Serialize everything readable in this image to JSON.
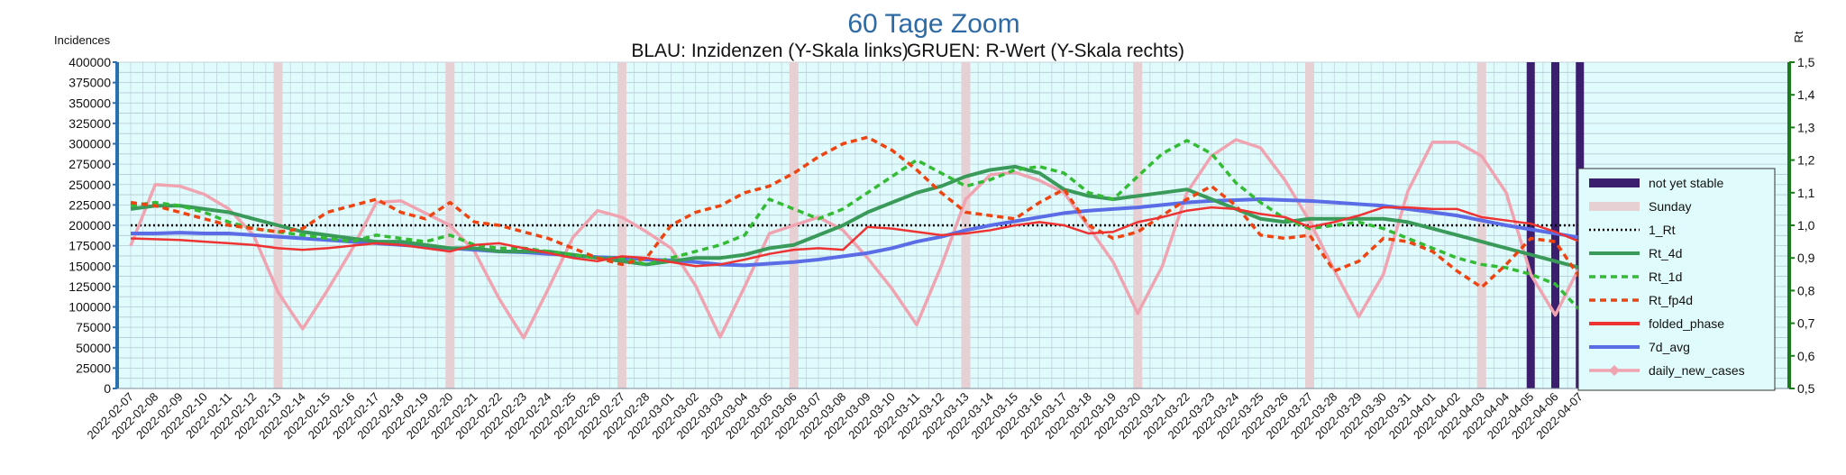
{
  "chart_data": {
    "type": "line",
    "title": "60 Tage Zoom",
    "subtitle_left": "BLAU: Inzidenzen (Y-Skala links)",
    "subtitle_right": "GRUEN: R-Wert (Y-Skala rechts)",
    "ylabel_left": "Incidences",
    "ylabel_right": "Rt",
    "ylim_left": [
      0,
      400000
    ],
    "ylim_right": [
      0.5,
      1.5
    ],
    "yticks_left": [
      "0",
      "25000",
      "50000",
      "75000",
      "100000",
      "125000",
      "150000",
      "175000",
      "200000",
      "225000",
      "250000",
      "275000",
      "300000",
      "325000",
      "350000",
      "375000",
      "400000"
    ],
    "yticks_right": [
      "0,5",
      "0,6",
      "0,7",
      "0,8",
      "0,9",
      "1,0",
      "1,1",
      "1,2",
      "1,3",
      "1,4",
      "1,5"
    ],
    "x": [
      "2022-02-07",
      "2022-02-08",
      "2022-02-09",
      "2022-02-10",
      "2022-02-11",
      "2022-02-12",
      "2022-02-13",
      "2022-02-14",
      "2022-02-15",
      "2022-02-16",
      "2022-02-17",
      "2022-02-18",
      "2022-02-19",
      "2022-02-20",
      "2022-02-21",
      "2022-02-22",
      "2022-02-23",
      "2022-02-24",
      "2022-02-25",
      "2022-02-26",
      "2022-02-27",
      "2022-02-28",
      "2022-03-01",
      "2022-03-02",
      "2022-03-03",
      "2022-03-04",
      "2022-03-05",
      "2022-03-06",
      "2022-03-07",
      "2022-03-08",
      "2022-03-09",
      "2022-03-10",
      "2022-03-11",
      "2022-03-12",
      "2022-03-13",
      "2022-03-14",
      "2022-03-15",
      "2022-03-16",
      "2022-03-17",
      "2022-03-18",
      "2022-03-19",
      "2022-03-20",
      "2022-03-21",
      "2022-03-22",
      "2022-03-23",
      "2022-03-24",
      "2022-03-25",
      "2022-03-26",
      "2022-03-27",
      "2022-03-28",
      "2022-03-29",
      "2022-03-30",
      "2022-03-31",
      "2022-04-01",
      "2022-04-02",
      "2022-04-03",
      "2022-04-04",
      "2022-04-05",
      "2022-04-06",
      "2022-04-07"
    ],
    "sundays": [
      "2022-02-13",
      "2022-02-20",
      "2022-02-27",
      "2022-03-06",
      "2022-03-13",
      "2022-03-20",
      "2022-03-27",
      "2022-04-03"
    ],
    "not_yet_stable": [
      "2022-04-05",
      "2022-04-06",
      "2022-04-07"
    ],
    "reference_line": 1.0,
    "series": [
      {
        "name": "daily_new_cases",
        "axis": "left",
        "color": "#f0a3b0",
        "values": [
          175000,
          250000,
          248000,
          238000,
          220000,
          188000,
          118000,
          73000,
          120000,
          170000,
          228000,
          230000,
          215000,
          200000,
          168000,
          110000,
          62000,
          122000,
          185000,
          218000,
          210000,
          192000,
          172000,
          126000,
          63000,
          125000,
          190000,
          200000,
          210000,
          194000,
          160000,
          122000,
          78000,
          150000,
          232000,
          262000,
          265000,
          255000,
          240000,
          198000,
          155000,
          92000,
          150000,
          240000,
          285000,
          305000,
          295000,
          255000,
          205000,
          145000,
          88000,
          140000,
          242000,
          302000,
          302000,
          285000,
          240000,
          140000,
          90000,
          150000
        ]
      },
      {
        "name": "7d_avg",
        "axis": "left",
        "color": "#5b6de6",
        "values": [
          190000,
          190000,
          191000,
          190000,
          190000,
          188000,
          186000,
          184000,
          182000,
          180000,
          178000,
          176000,
          174000,
          172000,
          170000,
          168000,
          167000,
          165000,
          163000,
          161000,
          160000,
          158000,
          157000,
          155000,
          152000,
          151000,
          153000,
          155000,
          158000,
          162000,
          166000,
          172000,
          180000,
          186000,
          194000,
          200000,
          205000,
          210000,
          215000,
          218000,
          220000,
          222000,
          225000,
          228000,
          230000,
          231000,
          232000,
          231000,
          230000,
          228000,
          226000,
          224000,
          220000,
          216000,
          212000,
          206000,
          200000,
          195000,
          190000,
          185000
        ]
      },
      {
        "name": "folded_phase",
        "axis": "left",
        "color": "#ee3333",
        "values": [
          184000,
          183000,
          182000,
          180000,
          178000,
          176000,
          172000,
          170000,
          172000,
          175000,
          178000,
          176000,
          172000,
          168000,
          176000,
          178000,
          172000,
          166000,
          160000,
          156000,
          162000,
          160000,
          155000,
          150000,
          152000,
          158000,
          165000,
          170000,
          172000,
          170000,
          198000,
          196000,
          192000,
          188000,
          190000,
          194000,
          200000,
          204000,
          200000,
          190000,
          192000,
          204000,
          210000,
          218000,
          222000,
          220000,
          214000,
          210000,
          198000,
          204000,
          212000,
          222000,
          222000,
          220000,
          220000,
          210000,
          206000,
          202000,
          192000,
          180000
        ]
      },
      {
        "name": "Rt_4d",
        "axis": "right",
        "color": "#3a9a5a",
        "values": [
          1.05,
          1.06,
          1.06,
          1.05,
          1.04,
          1.02,
          1.0,
          0.98,
          0.97,
          0.96,
          0.95,
          0.95,
          0.94,
          0.93,
          0.93,
          0.92,
          0.92,
          0.92,
          0.91,
          0.9,
          0.89,
          0.88,
          0.89,
          0.9,
          0.9,
          0.91,
          0.93,
          0.94,
          0.97,
          1.0,
          1.04,
          1.07,
          1.1,
          1.12,
          1.15,
          1.17,
          1.18,
          1.16,
          1.11,
          1.09,
          1.08,
          1.09,
          1.1,
          1.11,
          1.08,
          1.05,
          1.02,
          1.01,
          1.02,
          1.02,
          1.02,
          1.02,
          1.01,
          0.99,
          0.97,
          0.95,
          0.93,
          0.91,
          0.89,
          0.87
        ]
      },
      {
        "name": "Rt_1d",
        "axis": "right",
        "color": "#33bb33",
        "values": [
          1.06,
          1.07,
          1.06,
          1.04,
          1.01,
          0.99,
          0.98,
          0.97,
          0.96,
          0.95,
          0.97,
          0.96,
          0.95,
          0.97,
          0.94,
          0.93,
          0.93,
          0.92,
          0.91,
          0.9,
          0.9,
          0.88,
          0.9,
          0.92,
          0.94,
          0.97,
          1.08,
          1.05,
          1.02,
          1.05,
          1.1,
          1.15,
          1.2,
          1.16,
          1.12,
          1.14,
          1.17,
          1.18,
          1.16,
          1.1,
          1.08,
          1.15,
          1.22,
          1.26,
          1.22,
          1.13,
          1.07,
          1.02,
          0.99,
          1.0,
          1.01,
          0.99,
          0.96,
          0.93,
          0.9,
          0.88,
          0.87,
          0.85,
          0.82,
          0.74
        ]
      },
      {
        "name": "Rt_fp4d",
        "axis": "right",
        "color": "#ee4411",
        "values": [
          1.07,
          1.06,
          1.04,
          1.02,
          1.0,
          0.99,
          0.98,
          0.99,
          1.04,
          1.06,
          1.08,
          1.04,
          1.02,
          1.07,
          1.01,
          1.0,
          0.98,
          0.96,
          0.93,
          0.9,
          0.88,
          0.9,
          1.0,
          1.04,
          1.06,
          1.1,
          1.12,
          1.16,
          1.21,
          1.25,
          1.27,
          1.23,
          1.17,
          1.1,
          1.04,
          1.03,
          1.02,
          1.07,
          1.11,
          1.0,
          0.96,
          0.98,
          1.03,
          1.08,
          1.12,
          1.06,
          0.97,
          0.96,
          0.97,
          0.86,
          0.89,
          0.96,
          0.95,
          0.92,
          0.86,
          0.81,
          0.88,
          0.96,
          0.95,
          0.84
        ]
      }
    ],
    "legend": {
      "position": "right",
      "items": [
        {
          "label": "not yet stable",
          "style": "bar",
          "color": "#3b1f6e"
        },
        {
          "label": "Sunday",
          "style": "bar",
          "color": "#e6d0d4"
        },
        {
          "label": "1_Rt",
          "style": "dotted",
          "color": "#000000"
        },
        {
          "label": "Rt_4d",
          "style": "solid",
          "color": "#3a9a5a"
        },
        {
          "label": "Rt_1d",
          "style": "dashed",
          "color": "#33bb33"
        },
        {
          "label": "Rt_fp4d",
          "style": "dashed",
          "color": "#ee4411"
        },
        {
          "label": "folded_phase",
          "style": "solid",
          "color": "#ee3333"
        },
        {
          "label": "7d_avg",
          "style": "solid",
          "color": "#5b6de6"
        },
        {
          "label": "daily_new_cases",
          "style": "marker",
          "color": "#f0a3b0"
        }
      ]
    },
    "colors": {
      "plot_bg": "#e0fbfb",
      "grid": "#b5c9d6",
      "left_axis": "#2a6fb0",
      "right_axis": "#1a7a1a",
      "sunday_band": "#e6d0d4",
      "unstable_band": "#3b1f6e",
      "title": "#2e6aa6"
    }
  }
}
